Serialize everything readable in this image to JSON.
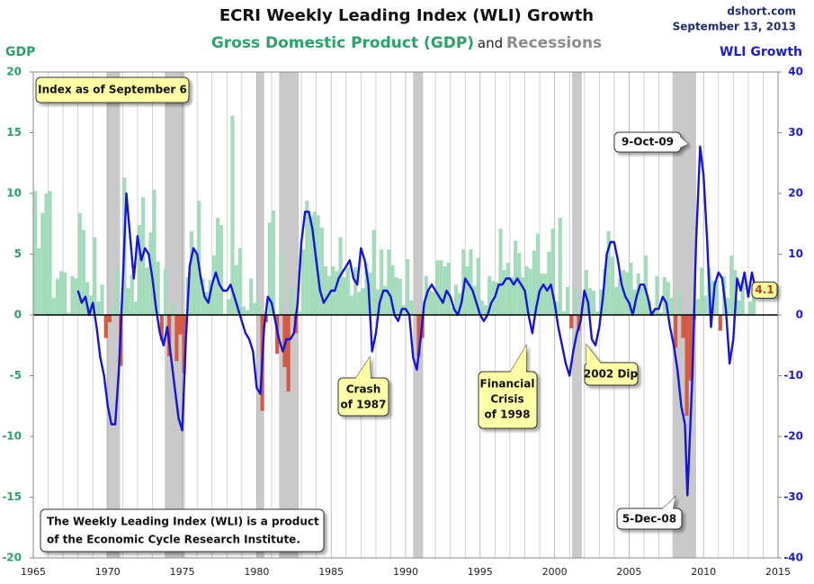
{
  "chart_data": {
    "type": "combo",
    "title": "ECRI Weekly Leading Index (WLI) Growth",
    "subtitle_join": "and",
    "source": "dshort.com",
    "date": "September 13, 2013",
    "ylabel": "GDP",
    "y2label": "WLI Growth",
    "xlim": [
      1965,
      2015
    ],
    "xticks": [
      1965,
      1970,
      1975,
      1980,
      1985,
      1990,
      1995,
      2000,
      2005,
      2010,
      2015
    ],
    "ylim": [
      -20,
      20
    ],
    "yticks": [
      -20,
      -15,
      -10,
      -5,
      0,
      5,
      10,
      15,
      20
    ],
    "y2lim": [
      -40,
      40
    ],
    "y2ticks": [
      -40,
      -30,
      -20,
      -10,
      0,
      10,
      20,
      30,
      40
    ],
    "vertical_grid": true,
    "recessions": {
      "name": "Recessions",
      "color": "#c9c9c9",
      "periods": [
        [
          1969.92,
          1970.83
        ],
        [
          1973.83,
          1975.17
        ],
        [
          1980.0,
          1980.5
        ],
        [
          1981.5,
          1982.83
        ],
        [
          1990.5,
          1991.17
        ],
        [
          2001.17,
          2001.83
        ],
        [
          2007.92,
          2009.5
        ]
      ]
    },
    "series": [
      {
        "name": "Gross Domestic Product (GDP)",
        "type": "bar",
        "color": "#a3dcba",
        "negative_color": "#d65a43",
        "x": [
          1965,
          1965.25,
          1965.5,
          1965.75,
          1966,
          1966.25,
          1966.5,
          1966.75,
          1967,
          1967.25,
          1967.5,
          1967.75,
          1968,
          1968.25,
          1968.5,
          1968.75,
          1969,
          1969.25,
          1969.5,
          1969.75,
          1970,
          1970.25,
          1970.5,
          1970.75,
          1971,
          1971.25,
          1971.5,
          1971.75,
          1972,
          1972.25,
          1972.5,
          1972.75,
          1973,
          1973.25,
          1973.5,
          1973.75,
          1974,
          1974.25,
          1974.5,
          1974.75,
          1975,
          1975.25,
          1975.5,
          1975.75,
          1976,
          1976.25,
          1976.5,
          1976.75,
          1977,
          1977.25,
          1977.5,
          1977.75,
          1978,
          1978.25,
          1978.5,
          1978.75,
          1979,
          1979.25,
          1979.5,
          1979.75,
          1980,
          1980.25,
          1980.5,
          1980.75,
          1981,
          1981.25,
          1981.5,
          1981.75,
          1982,
          1982.25,
          1982.5,
          1982.75,
          1983,
          1983.25,
          1983.5,
          1983.75,
          1984,
          1984.25,
          1984.5,
          1984.75,
          1985,
          1985.25,
          1985.5,
          1985.75,
          1986,
          1986.25,
          1986.5,
          1986.75,
          1987,
          1987.25,
          1987.5,
          1987.75,
          1988,
          1988.25,
          1988.5,
          1988.75,
          1989,
          1989.25,
          1989.5,
          1989.75,
          1990,
          1990.25,
          1990.5,
          1990.75,
          1991,
          1991.25,
          1991.5,
          1991.75,
          1992,
          1992.25,
          1992.5,
          1992.75,
          1993,
          1993.25,
          1993.5,
          1993.75,
          1994,
          1994.25,
          1994.5,
          1994.75,
          1995,
          1995.25,
          1995.5,
          1995.75,
          1996,
          1996.25,
          1996.5,
          1996.75,
          1997,
          1997.25,
          1997.5,
          1997.75,
          1998,
          1998.25,
          1998.5,
          1998.75,
          1999,
          1999.25,
          1999.5,
          1999.75,
          2000,
          2000.25,
          2000.5,
          2000.75,
          2001,
          2001.25,
          2001.5,
          2001.75,
          2002,
          2002.25,
          2002.5,
          2002.75,
          2003,
          2003.25,
          2003.5,
          2003.75,
          2004,
          2004.25,
          2004.5,
          2004.75,
          2005,
          2005.25,
          2005.5,
          2005.75,
          2006,
          2006.25,
          2006.5,
          2006.75,
          2007,
          2007.25,
          2007.5,
          2007.75,
          2008,
          2008.25,
          2008.5,
          2008.75,
          2009,
          2009.25,
          2009.5,
          2009.75,
          2010,
          2010.25,
          2010.5,
          2010.75,
          2011,
          2011.25,
          2011.5,
          2011.75,
          2012,
          2012.25,
          2012.5,
          2012.75,
          2013,
          2013.25
        ],
        "values": [
          10.2,
          5.5,
          8.4,
          10.0,
          10.2,
          1.4,
          3.0,
          3.6,
          3.5,
          0.2,
          3.2,
          3.0,
          8.4,
          7.0,
          2.7,
          1.6,
          6.4,
          1.1,
          2.5,
          -1.9,
          -0.6,
          0.6,
          3.7,
          -4.2,
          11.3,
          2.2,
          3.3,
          1.1,
          7.4,
          9.7,
          3.9,
          6.8,
          10.3,
          4.4,
          -2.1,
          3.8,
          -3.4,
          1.0,
          -3.8,
          -1.6,
          -4.8,
          3.1,
          6.9,
          5.3,
          9.4,
          3.0,
          1.9,
          2.9,
          4.9,
          8.0,
          7.4,
          0.1,
          1.3,
          16.4,
          4.1,
          5.5,
          0.7,
          0.4,
          3.0,
          1.0,
          1.3,
          -7.9,
          -0.6,
          7.6,
          8.6,
          -3.2,
          4.9,
          -4.3,
          -6.3,
          2.2,
          -1.5,
          0.3,
          5.4,
          9.4,
          8.1,
          8.5,
          8.2,
          7.2,
          4.0,
          3.2,
          4.0,
          3.6,
          6.4,
          3.1,
          3.9,
          1.6,
          3.9,
          1.9,
          2.2,
          4.3,
          3.5,
          7.0,
          2.1,
          5.4,
          2.4,
          5.4,
          4.1,
          3.1,
          3.0,
          0.8,
          4.6,
          1.2,
          0.0,
          -3.4,
          -1.9,
          3.2,
          2.0,
          1.9,
          4.5,
          4.5,
          4.0,
          4.3,
          0.6,
          2.5,
          1.8,
          5.4,
          4.0,
          5.4,
          2.4,
          4.7,
          1.2,
          0.8,
          3.2,
          2.8,
          2.7,
          7.1,
          3.7,
          4.3,
          3.1,
          6.1,
          5.1,
          3.1,
          4.0,
          3.8,
          5.3,
          6.7,
          3.4,
          3.4,
          5.2,
          7.1,
          1.1,
          8.0,
          0.3,
          2.3,
          -1.1,
          2.1,
          -1.3,
          1.1,
          3.7,
          2.2,
          2.0,
          0.3,
          2.1,
          3.8,
          6.9,
          4.8,
          2.3,
          3.0,
          3.7,
          3.5,
          4.3,
          2.1,
          3.4,
          2.3,
          4.9,
          1.2,
          0.4,
          3.2,
          0.2,
          3.1,
          2.7,
          1.4,
          -2.7,
          2.0,
          -1.9,
          -8.3,
          -5.4,
          -0.4,
          1.3,
          3.9,
          1.6,
          3.9,
          2.8,
          2.8,
          -1.3,
          3.2,
          1.4,
          4.9,
          3.7,
          1.2,
          2.8,
          0.1,
          1.1,
          2.5
        ]
      },
      {
        "type": "line",
        "axis": "y2",
        "color": "#1414e0",
        "x": [
          1968,
          1968.25,
          1968.5,
          1968.75,
          1969,
          1969.25,
          1969.5,
          1969.75,
          1970,
          1970.25,
          1970.5,
          1970.75,
          1971,
          1971.25,
          1971.5,
          1971.75,
          1972,
          1972.25,
          1972.5,
          1972.75,
          1973,
          1973.25,
          1973.5,
          1973.75,
          1974,
          1974.25,
          1974.5,
          1974.75,
          1975,
          1975.25,
          1975.5,
          1975.75,
          1976,
          1976.25,
          1976.5,
          1976.75,
          1977,
          1977.25,
          1977.5,
          1977.75,
          1978,
          1978.25,
          1978.5,
          1978.75,
          1979,
          1979.25,
          1979.5,
          1979.75,
          1980,
          1980.25,
          1980.5,
          1980.75,
          1981,
          1981.25,
          1981.5,
          1981.75,
          1982,
          1982.25,
          1982.5,
          1982.75,
          1983,
          1983.25,
          1983.5,
          1983.75,
          1984,
          1984.25,
          1984.5,
          1984.75,
          1985,
          1985.25,
          1985.5,
          1985.75,
          1986,
          1986.25,
          1986.5,
          1986.75,
          1987,
          1987.25,
          1987.5,
          1987.75,
          1988,
          1988.25,
          1988.5,
          1988.75,
          1989,
          1989.25,
          1989.5,
          1989.75,
          1990,
          1990.25,
          1990.5,
          1990.75,
          1991,
          1991.25,
          1991.5,
          1991.75,
          1992,
          1992.25,
          1992.5,
          1992.75,
          1993,
          1993.25,
          1993.5,
          1993.75,
          1994,
          1994.25,
          1994.5,
          1994.75,
          1995,
          1995.25,
          1995.5,
          1995.75,
          1996,
          1996.25,
          1996.5,
          1996.75,
          1997,
          1997.25,
          1997.5,
          1997.75,
          1998,
          1998.25,
          1998.5,
          1998.75,
          1999,
          1999.25,
          1999.5,
          1999.75,
          2000,
          2000.25,
          2000.5,
          2000.75,
          2001,
          2001.25,
          2001.5,
          2001.75,
          2002,
          2002.25,
          2002.5,
          2002.75,
          2003,
          2003.25,
          2003.5,
          2003.75,
          2004,
          2004.25,
          2004.5,
          2004.75,
          2005,
          2005.25,
          2005.5,
          2005.75,
          2006,
          2006.25,
          2006.5,
          2006.75,
          2007,
          2007.25,
          2007.5,
          2007.75,
          2008,
          2008.25,
          2008.5,
          2008.75,
          2008.92,
          2009.25,
          2009.5,
          2009.77,
          2010,
          2010.25,
          2010.5,
          2010.75,
          2011,
          2011.25,
          2011.5,
          2011.75,
          2012,
          2012.25,
          2012.5,
          2012.75,
          2013,
          2013.25,
          2013.5,
          2013.69
        ],
        "values": [
          4,
          2,
          3,
          0,
          2,
          -2,
          -7,
          -10,
          -15,
          -18,
          -18,
          -9,
          5,
          20,
          13,
          6,
          13,
          9,
          11,
          10,
          6,
          1,
          -3,
          -5,
          -2,
          -7,
          -12,
          -17,
          -19,
          -4,
          8,
          11,
          10,
          6,
          3,
          2,
          5,
          7,
          5,
          4,
          4,
          5,
          3,
          1,
          -1,
          -3,
          -4,
          -6,
          -12,
          -13,
          -2,
          3,
          2,
          -1,
          -4,
          -6,
          -4,
          -4,
          -3,
          2,
          12,
          17,
          17,
          14,
          9,
          4,
          2,
          3,
          4,
          4,
          6,
          7,
          8,
          9,
          6,
          5,
          11,
          9,
          5,
          -6,
          -3,
          2,
          4,
          4,
          3,
          0,
          -1,
          1,
          1,
          0,
          -7,
          -9,
          -4,
          2,
          4,
          5,
          4,
          3,
          2,
          4,
          3,
          1,
          0,
          2,
          6,
          5,
          4,
          2,
          0,
          -1,
          0,
          2,
          3,
          5,
          5,
          6,
          6,
          5,
          6,
          5,
          4,
          0,
          -3,
          1,
          4,
          5,
          4,
          5,
          2,
          -2,
          -5,
          -8,
          -10,
          -6,
          -3,
          -1,
          4,
          2,
          -4,
          -5,
          -2,
          3,
          10,
          12,
          12,
          9,
          5,
          3,
          2,
          0,
          3,
          5,
          5,
          3,
          0,
          1,
          1,
          3,
          2,
          -2,
          -5,
          -9,
          -15,
          -18,
          -29.7,
          -10,
          12,
          27.7,
          23,
          12,
          -2,
          5,
          7,
          6,
          1,
          -8,
          -4,
          6,
          4,
          7,
          3,
          7,
          4,
          4.1
        ]
      }
    ],
    "annotations": {
      "index_date": "Index as of September 6",
      "crash": [
        "Crash",
        "of 1987"
      ],
      "crisis": [
        "Financial",
        "Crisis",
        "of 1998"
      ],
      "dip": "2002 Dip",
      "peak": "9-Oct-09",
      "trough": "5-Dec-08",
      "footnote": [
        "The Weekly Leading Index (WLI) is a product",
        "of the Economic Cycle Research Institute."
      ]
    }
  }
}
